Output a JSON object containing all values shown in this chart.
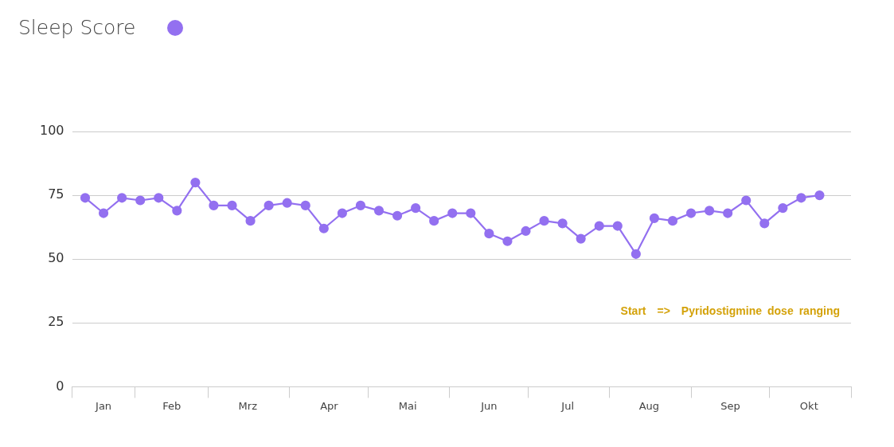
{
  "chart_data": {
    "type": "line",
    "legend": "top left",
    "grid": "y",
    "marker": "circle",
    "line_style": "solid",
    "x": [
      "--01-13",
      "--01-20",
      "--01-27",
      "--02-03",
      "--02-10",
      "--02-17",
      "--02-24",
      "--03-03",
      "--03-10",
      "--03-17",
      "--03-24",
      "--03-31",
      "--04-07",
      "--04-14",
      "--04-21",
      "--04-28",
      "--05-05",
      "--05-12",
      "--05-19",
      "--05-26",
      "--06-02",
      "--06-09",
      "--06-16",
      "--06-23",
      "--06-30",
      "--07-07",
      "--07-14",
      "--07-21",
      "--07-28",
      "--08-04",
      "--08-11",
      "--08-18",
      "--08-25",
      "--09-01",
      "--09-08",
      "--09-15",
      "--09-22",
      "--09-29",
      "--10-06",
      "--10-13",
      "--10-20"
    ],
    "series": [
      {
        "name": "Sleep Score",
        "color": "#9370f0",
        "values": [
          74,
          68,
          74,
          73,
          74,
          69,
          80,
          71,
          71,
          65,
          71,
          72,
          71,
          62,
          68,
          71,
          69,
          67,
          70,
          65,
          68,
          68,
          60,
          57,
          61,
          65,
          64,
          58,
          63,
          63,
          52,
          66,
          65,
          68,
          69,
          68,
          73,
          64,
          70,
          74,
          75
        ]
      }
    ],
    "xlim": [
      "--01-08",
      "--11-01"
    ],
    "xticks": [
      {
        "value": "--01-08",
        "label": null
      },
      {
        "value": "--01-20",
        "label": "Jan"
      },
      {
        "value": "--02-01",
        "label": null
      },
      {
        "value": "--02-15",
        "label": "Feb"
      },
      {
        "value": "--03-01",
        "label": null
      },
      {
        "value": "--03-16",
        "label": "Mrz"
      },
      {
        "value": "--04-01",
        "label": null
      },
      {
        "value": "--04-16",
        "label": "Apr"
      },
      {
        "value": "--05-01",
        "label": null
      },
      {
        "value": "--05-16",
        "label": "Mai"
      },
      {
        "value": "--06-01",
        "label": null
      },
      {
        "value": "--06-16",
        "label": "Jun"
      },
      {
        "value": "--07-01",
        "label": null
      },
      {
        "value": "--07-16",
        "label": "Jul"
      },
      {
        "value": "--08-01",
        "label": null
      },
      {
        "value": "--08-16",
        "label": "Aug"
      },
      {
        "value": "--09-01",
        "label": null
      },
      {
        "value": "--09-16",
        "label": "Sep"
      },
      {
        "value": "--10-01",
        "label": null
      },
      {
        "value": "--10-16",
        "label": "Okt"
      },
      {
        "value": "--11-01",
        "label": null
      }
    ],
    "ylim": [
      0,
      100
    ],
    "yticks": [
      0,
      25,
      50,
      75,
      100
    ],
    "annotations": [
      "Start  =>  Pyridostigmine dose ranging"
    ]
  }
}
